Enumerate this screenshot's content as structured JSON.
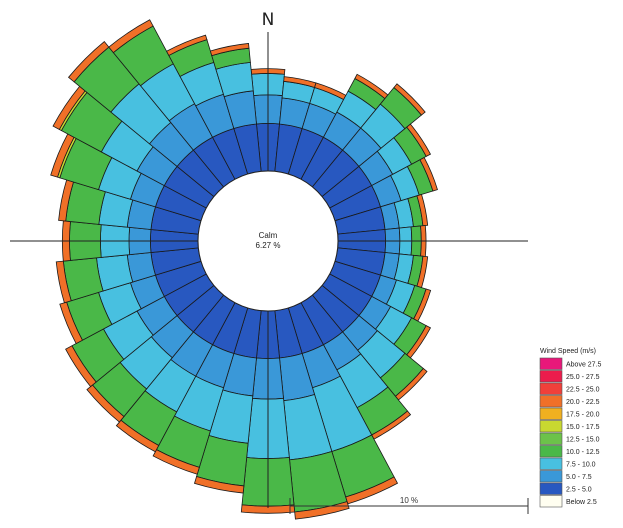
{
  "chart_data": {
    "type": "wind-rose",
    "north_label": "N",
    "calm": {
      "label": "Calm",
      "value_text": "6.27 %",
      "percent": 6.27
    },
    "scale_label": "10 %",
    "legend": {
      "title": "Wind Speed (m/s)",
      "bins": [
        {
          "label": "Above  27.5",
          "color": "#e8187a"
        },
        {
          "label": "25.0 - 27.5",
          "color": "#ec1c4c"
        },
        {
          "label": "22.5 - 25.0",
          "color": "#f0403a"
        },
        {
          "label": "20.0 - 22.5",
          "color": "#f07028"
        },
        {
          "label": "17.5 - 20.0",
          "color": "#f0b020"
        },
        {
          "label": "15.0 - 17.5",
          "color": "#c8d830"
        },
        {
          "label": "12.5 - 15.0",
          "color": "#6cc24a"
        },
        {
          "label": "10.0 - 12.5",
          "color": "#4ab848"
        },
        {
          "label": "7.5 - 10.0",
          "color": "#48c0e0"
        },
        {
          "label": "5.0 -  7.5",
          "color": "#3a98d8"
        },
        {
          "label": "2.5 -  5.0",
          "color": "#2858c0"
        },
        {
          "label": "Below   2.5",
          "color": "#fffef0"
        }
      ]
    },
    "sector_degrees": 11.25,
    "sectors": [
      {
        "dir_deg": 0,
        "segments": [
          2.0,
          1.2,
          0.9,
          0.0,
          0.0,
          0.2
        ]
      },
      {
        "dir_deg": 11.25,
        "segments": [
          2.0,
          1.1,
          0.7,
          0.0,
          0.0,
          0.2
        ]
      },
      {
        "dir_deg": 22.5,
        "segments": [
          2.0,
          1.1,
          0.7,
          0.0,
          0.0,
          0.2
        ]
      },
      {
        "dir_deg": 33.75,
        "segments": [
          2.0,
          1.2,
          1.0,
          0.6,
          0.0,
          0.2
        ]
      },
      {
        "dir_deg": 45,
        "segments": [
          2.0,
          1.2,
          1.3,
          0.9,
          0.0,
          0.2
        ]
      },
      {
        "dir_deg": 56.25,
        "segments": [
          2.0,
          1.0,
          0.9,
          0.7,
          0.0,
          0.2
        ]
      },
      {
        "dir_deg": 67.5,
        "segments": [
          2.0,
          0.9,
          0.8,
          0.6,
          0.0,
          0.2
        ]
      },
      {
        "dir_deg": 78.75,
        "segments": [
          2.0,
          0.6,
          0.6,
          0.4,
          0.0,
          0.2
        ]
      },
      {
        "dir_deg": 90,
        "segments": [
          2.0,
          0.6,
          0.5,
          0.4,
          0.0,
          0.2
        ]
      },
      {
        "dir_deg": 101.25,
        "segments": [
          2.0,
          0.6,
          0.6,
          0.4,
          0.0,
          0.2
        ]
      },
      {
        "dir_deg": 112.5,
        "segments": [
          2.0,
          0.7,
          0.8,
          0.5,
          0.0,
          0.2
        ]
      },
      {
        "dir_deg": 123.75,
        "segments": [
          2.0,
          0.9,
          1.0,
          0.7,
          0.0,
          0.2
        ]
      },
      {
        "dir_deg": 135,
        "segments": [
          2.0,
          1.0,
          1.5,
          1.0,
          0.0,
          0.2
        ]
      },
      {
        "dir_deg": 146.25,
        "segments": [
          2.0,
          1.2,
          1.8,
          1.3,
          0.0,
          0.2
        ]
      },
      {
        "dir_deg": 157.5,
        "segments": [
          2.0,
          1.5,
          2.8,
          2.0,
          0.0,
          0.3
        ]
      },
      {
        "dir_deg": 168.75,
        "segments": [
          2.0,
          1.8,
          2.5,
          2.2,
          0.0,
          0.3
        ]
      },
      {
        "dir_deg": 180,
        "segments": [
          2.0,
          1.7,
          2.5,
          2.0,
          0.0,
          0.3
        ]
      },
      {
        "dir_deg": 191.25,
        "segments": [
          2.0,
          1.6,
          2.0,
          1.8,
          0.0,
          0.3
        ]
      },
      {
        "dir_deg": 202.5,
        "segments": [
          2.0,
          1.5,
          1.9,
          1.6,
          0.0,
          0.3
        ]
      },
      {
        "dir_deg": 213.75,
        "segments": [
          2.0,
          1.5,
          1.7,
          1.6,
          0.0,
          0.3
        ]
      },
      {
        "dir_deg": 225,
        "segments": [
          2.0,
          1.4,
          1.7,
          1.5,
          0.0,
          0.3
        ]
      },
      {
        "dir_deg": 236.25,
        "segments": [
          2.0,
          1.3,
          1.6,
          1.5,
          0.0,
          0.3
        ]
      },
      {
        "dir_deg": 247.5,
        "segments": [
          2.0,
          1.1,
          1.4,
          1.4,
          0.0,
          0.3
        ]
      },
      {
        "dir_deg": 258.75,
        "segments": [
          2.0,
          1.0,
          1.3,
          1.4,
          0.0,
          0.3
        ]
      },
      {
        "dir_deg": 270,
        "segments": [
          2.0,
          0.9,
          1.2,
          1.3,
          0.0,
          0.3
        ]
      },
      {
        "dir_deg": 281.25,
        "segments": [
          2.0,
          1.0,
          1.2,
          1.4,
          0.0,
          0.3
        ]
      },
      {
        "dir_deg": 292.5,
        "segments": [
          2.0,
          1.1,
          1.4,
          1.7,
          0.1,
          0.3
        ]
      },
      {
        "dir_deg": 303.75,
        "segments": [
          2.0,
          1.3,
          1.7,
          1.9,
          0.1,
          0.3
        ]
      },
      {
        "dir_deg": 315,
        "segments": [
          2.0,
          1.5,
          2.1,
          2.0,
          0.0,
          0.3
        ]
      },
      {
        "dir_deg": 326.25,
        "segments": [
          2.0,
          1.6,
          1.9,
          1.8,
          0.0,
          0.3
        ]
      },
      {
        "dir_deg": 337.5,
        "segments": [
          2.0,
          1.5,
          1.4,
          1.0,
          0.0,
          0.2
        ]
      },
      {
        "dir_deg": 348.75,
        "segments": [
          2.0,
          1.4,
          1.2,
          0.6,
          0.0,
          0.2
        ]
      }
    ],
    "segment_bins": [
      "2.5 -  5.0",
      "5.0 -  7.5",
      "7.5 - 10.0",
      "10.0 - 12.5",
      "15.0 - 17.5",
      "20.0 - 22.5"
    ],
    "grid": false
  }
}
